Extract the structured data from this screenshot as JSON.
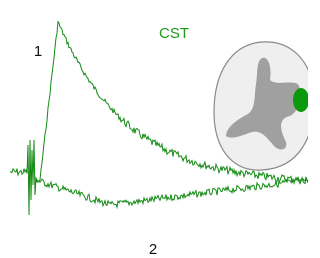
{
  "labels": {
    "title": "CST",
    "trace_1": "1",
    "trace_2": "2"
  }
}
